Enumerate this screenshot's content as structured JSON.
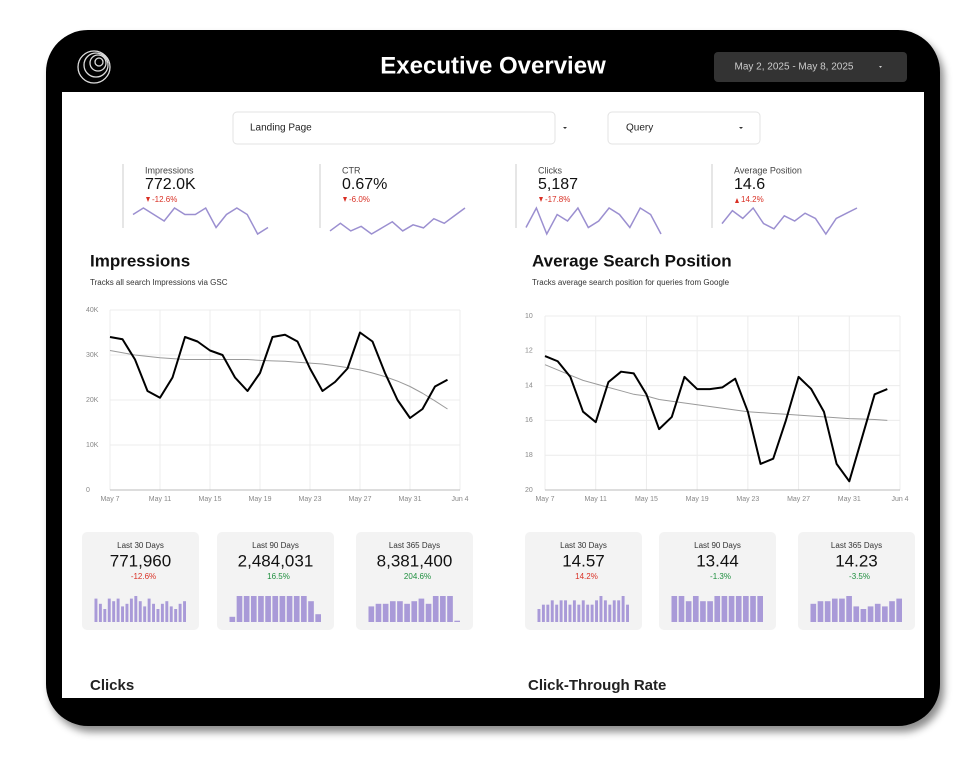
{
  "header": {
    "title": "Executive Overview",
    "date_range": "May 2, 2025 - May 8, 2025"
  },
  "filters": [
    "Landing Page",
    "Query"
  ],
  "scorecards": [
    {
      "label": "Impressions",
      "value": "772.0K",
      "delta": "-12.6%",
      "direction": "down",
      "color": "#d93025",
      "spark": [
        5,
        6,
        5,
        4,
        6,
        5,
        5,
        6,
        3,
        5,
        6,
        5,
        2,
        3
      ]
    },
    {
      "label": "CTR",
      "value": "0.67%",
      "delta": "-6.0%",
      "direction": "down",
      "color": "#d93025",
      "spark": [
        3,
        3.5,
        3,
        3.3,
        2.8,
        3.2,
        3.6,
        3,
        3.4,
        3.2,
        3.8,
        3.5,
        4,
        4.5
      ]
    },
    {
      "label": "Clicks",
      "value": "5,187",
      "delta": "-17.8%",
      "direction": "down",
      "color": "#d93025",
      "spark": [
        3,
        6,
        2,
        5,
        4,
        6,
        3,
        4,
        6,
        5,
        3,
        6,
        5,
        2
      ]
    },
    {
      "label": "Average Position",
      "value": "14.6",
      "delta": "14.2%",
      "direction": "up",
      "color": "#d93025",
      "spark": [
        4,
        4.5,
        4.2,
        4.6,
        4,
        3.8,
        4.3,
        4.1,
        4.4,
        4.2,
        3.6,
        4.2,
        4.4,
        4.6
      ]
    }
  ],
  "charts": [
    {
      "type": "line",
      "title": "Impressions",
      "subtitle": "Tracks all search Impressions via GSC",
      "xticks": [
        "May 7",
        "May 11",
        "May 15",
        "May 19",
        "May 23",
        "May 27",
        "May 31",
        "Jun 4"
      ],
      "ylim": [
        0,
        40000
      ],
      "reversed": false,
      "yticks": [
        {
          "value": 0,
          "label": "0"
        },
        {
          "value": 10000,
          "label": "10K"
        },
        {
          "value": 20000,
          "label": "20K"
        },
        {
          "value": 30000,
          "label": "30K"
        },
        {
          "value": 40000,
          "label": "40K"
        }
      ],
      "series": [
        {
          "color": "#000000",
          "values": [
            34000,
            33500,
            29000,
            22000,
            20500,
            25000,
            34000,
            33000,
            31000,
            30000,
            25000,
            22000,
            26000,
            34000,
            34500,
            33000,
            27000,
            22000,
            24000,
            27000,
            35000,
            33000,
            26000,
            20000,
            16000,
            18000,
            23000,
            24500
          ]
        },
        {
          "color": "#9a9a9a",
          "values": [
            31000,
            30500,
            30000,
            29700,
            29400,
            29200,
            29000,
            29000,
            29000,
            29000,
            29000,
            29000,
            28800,
            28700,
            28600,
            28400,
            28200,
            28000,
            27600,
            27200,
            26700,
            26000,
            25200,
            24200,
            23000,
            21500,
            19800,
            18000
          ]
        }
      ]
    },
    {
      "type": "line",
      "title": "Average Search Position",
      "subtitle": "Tracks average search position for queries from Google",
      "xticks": [
        "May 7",
        "May 11",
        "May 15",
        "May 19",
        "May 23",
        "May 27",
        "May 31",
        "Jun 4"
      ],
      "ylim": [
        10,
        20
      ],
      "reversed": true,
      "yticks": [
        10,
        12,
        14,
        16,
        18,
        20
      ],
      "series": [
        {
          "color": "#000000",
          "values": [
            12.3,
            12.6,
            13.5,
            15.5,
            16.1,
            13.8,
            13.2,
            13.3,
            14.5,
            16.5,
            15.8,
            13.5,
            14.2,
            14.2,
            14.1,
            13.6,
            15.5,
            18.5,
            18.2,
            16,
            13.5,
            14.2,
            15.5,
            18.5,
            19.5,
            17,
            14.5,
            14.2
          ]
        },
        {
          "color": "#9a9a9a",
          "values": [
            12.8,
            13.1,
            13.4,
            13.7,
            13.9,
            14.1,
            14.3,
            14.5,
            14.6,
            14.8,
            14.9,
            15.0,
            15.1,
            15.2,
            15.3,
            15.4,
            15.5,
            15.55,
            15.6,
            15.65,
            15.7,
            15.75,
            15.8,
            15.85,
            15.9,
            15.92,
            15.95,
            16.0
          ]
        }
      ]
    }
  ],
  "period_cards": [
    {
      "label": "Last 30 Days",
      "value": "771,960",
      "delta": "-12.6%",
      "direction": "down",
      "color": "#d93025",
      "bars": [
        9,
        7,
        5,
        9,
        8,
        9,
        6,
        7,
        9,
        10,
        8,
        6,
        9,
        7,
        5,
        7,
        8,
        6,
        5,
        7,
        8
      ]
    },
    {
      "label": "Last 90 Days",
      "value": "2,484,031",
      "delta": "16.5%",
      "direction": "up",
      "color": "#1e8e3e",
      "bars": [
        2,
        10,
        10,
        10,
        10,
        10,
        10,
        10,
        10,
        10,
        10,
        8,
        3
      ]
    },
    {
      "label": "Last 365 Days",
      "value": "8,381,400",
      "delta": "204.6%",
      "direction": "up",
      "color": "#1e8e3e",
      "bars": [
        6,
        7,
        7,
        8,
        8,
        7,
        8,
        9,
        7,
        10,
        10,
        10,
        0.5
      ]
    },
    {
      "label": "Last 30 Days",
      "value": "14.57",
      "delta": "14.2%",
      "direction": "up",
      "color": "#d93025",
      "bars": [
        3,
        4,
        4,
        5,
        4,
        5,
        5,
        4,
        5,
        4,
        5,
        4,
        4,
        5,
        6,
        5,
        4,
        5,
        5,
        6,
        4
      ]
    },
    {
      "label": "Last 90 Days",
      "value": "13.44",
      "delta": "-1.3%",
      "direction": "down",
      "color": "#1e8e3e",
      "bars": [
        5,
        5,
        4,
        5,
        4,
        4,
        5,
        5,
        5,
        5,
        5,
        5,
        5
      ]
    },
    {
      "label": "Last 365 Days",
      "value": "14.23",
      "delta": "-3.5%",
      "direction": "down",
      "color": "#1e8e3e",
      "bars": [
        7,
        8,
        8,
        9,
        9,
        10,
        6,
        5,
        6,
        7,
        6,
        8,
        9
      ]
    }
  ],
  "sections": [
    "Clicks",
    "Click-Through Rate"
  ]
}
